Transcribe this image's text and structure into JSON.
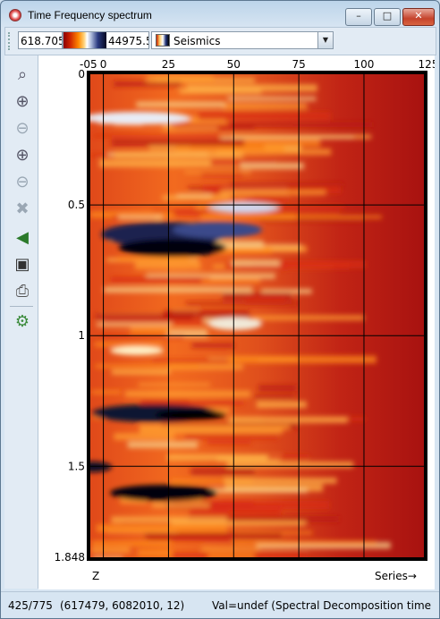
{
  "window": {
    "title": "Time Frequency spectrum",
    "minimize_label": "–",
    "maximize_label": "□",
    "close_label": "✕"
  },
  "toolbar": {
    "color_min": "618.705",
    "color_max": "44975.5",
    "colormap": "Seismics"
  },
  "sidebar": {
    "tools": [
      {
        "name": "zoom-window-icon",
        "glyph": "🔍"
      },
      {
        "name": "zoom-in-icon",
        "glyph": "🔍"
      },
      {
        "name": "zoom-out-icon",
        "glyph": "🔍"
      },
      {
        "name": "zoom-in-horizontal-icon",
        "glyph": "🔍"
      },
      {
        "name": "zoom-out-horizontal-icon",
        "glyph": "🔍"
      },
      {
        "name": "cancel-zoom-icon",
        "glyph": "🔍"
      },
      {
        "name": "move-icon",
        "glyph": "▶"
      },
      {
        "name": "snapshot-icon",
        "glyph": "📷"
      },
      {
        "name": "print-icon",
        "glyph": "🖶"
      },
      {
        "name": "settings-gear-icon",
        "glyph": "⚙"
      }
    ]
  },
  "chart_data": {
    "type": "heatmap",
    "x_ticks": [
      "0",
      "25",
      "50",
      "75",
      "100",
      "125"
    ],
    "x_tick_values": [
      0,
      25,
      50,
      75,
      100,
      125
    ],
    "x_partial_label": "-05",
    "y_ticks": [
      "0",
      "0.5",
      "1",
      "1.5",
      "1.848"
    ],
    "y_tick_values": [
      0,
      0.5,
      1,
      1.5,
      1.848
    ],
    "xlim": [
      -5,
      123
    ],
    "ylim": [
      0,
      1.848
    ],
    "xlabel": "Series→",
    "ylabel": "Z",
    "grid": true,
    "colormap": "Seismics",
    "color_range": [
      618.705,
      44975.5
    ]
  },
  "status": {
    "position": "425/775",
    "coords": "(617479, 6082010, 12)",
    "value": "Val=undef (Spectral Decomposition time"
  }
}
